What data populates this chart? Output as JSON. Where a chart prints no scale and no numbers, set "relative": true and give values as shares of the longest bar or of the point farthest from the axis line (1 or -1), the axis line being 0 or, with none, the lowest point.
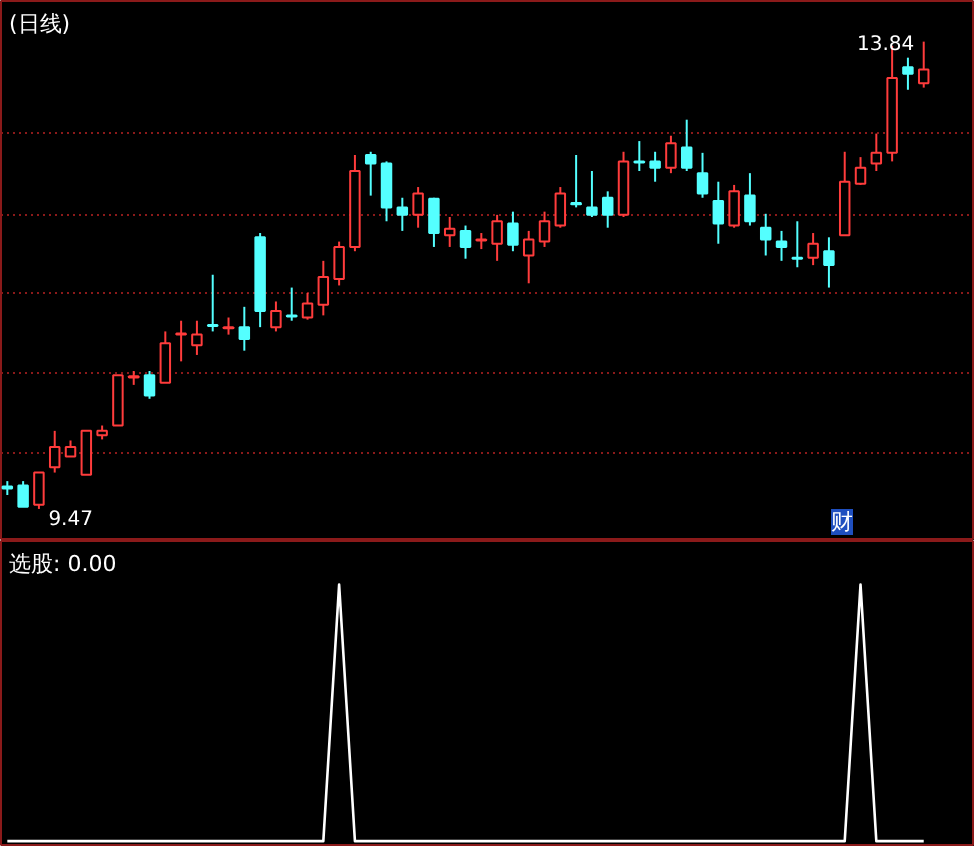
{
  "chart_data": [
    {
      "type": "candlestick",
      "title": "(日线)",
      "tick_labels": false,
      "grid": "y",
      "ylim": [
        9.17,
        14.22
      ],
      "yticks": [
        {
          "value": 12.98,
          "label": null
        },
        {
          "value": 12.22,
          "label": null
        },
        {
          "value": 11.49,
          "label": null
        },
        {
          "value": 10.74,
          "label": null
        },
        {
          "value": 9.99,
          "label": null
        }
      ],
      "categories": [
        null,
        null,
        null,
        null,
        null,
        null,
        null,
        null,
        null,
        null,
        null,
        null,
        null,
        null,
        null,
        null,
        null,
        null,
        null,
        null,
        null,
        null,
        null,
        null,
        null,
        null,
        null,
        null,
        null,
        null,
        null,
        null,
        null,
        null,
        null,
        null,
        null,
        null,
        null,
        null,
        null,
        null,
        null,
        null,
        null,
        null,
        null,
        null,
        null,
        null,
        null,
        null,
        null,
        null,
        null,
        null,
        null,
        null,
        null
      ],
      "ohlc": [
        [
          9.68,
          9.73,
          9.6,
          9.66
        ],
        [
          9.69,
          9.73,
          9.49,
          9.49
        ],
        [
          9.51,
          9.81,
          9.47,
          9.81
        ],
        [
          9.86,
          10.2,
          9.81,
          10.05
        ],
        [
          9.96,
          10.11,
          9.96,
          10.05
        ],
        [
          9.79,
          10.2,
          9.79,
          10.2
        ],
        [
          10.16,
          10.25,
          10.12,
          10.2
        ],
        [
          10.25,
          10.72,
          10.25,
          10.72
        ],
        [
          10.7,
          10.76,
          10.63,
          10.71
        ],
        [
          10.72,
          10.76,
          10.5,
          10.53
        ],
        [
          10.65,
          11.13,
          10.65,
          11.02
        ],
        [
          11.1,
          11.23,
          10.85,
          11.11
        ],
        [
          11.0,
          11.23,
          10.91,
          11.1
        ],
        [
          11.19,
          11.66,
          11.13,
          11.18
        ],
        [
          11.16,
          11.26,
          11.1,
          11.17
        ],
        [
          11.17,
          11.36,
          10.95,
          11.06
        ],
        [
          12.01,
          12.05,
          11.17,
          11.32
        ],
        [
          11.17,
          11.41,
          11.13,
          11.32
        ],
        [
          11.28,
          11.54,
          11.23,
          11.27
        ],
        [
          11.26,
          11.49,
          11.24,
          11.39
        ],
        [
          11.38,
          11.79,
          11.28,
          11.64
        ],
        [
          11.62,
          11.97,
          11.56,
          11.92
        ],
        [
          11.92,
          12.78,
          11.88,
          12.63
        ],
        [
          12.78,
          12.81,
          12.4,
          12.7
        ],
        [
          12.7,
          12.72,
          12.16,
          12.29
        ],
        [
          12.29,
          12.38,
          12.07,
          12.22
        ],
        [
          12.22,
          12.48,
          12.1,
          12.42
        ],
        [
          12.37,
          12.38,
          11.92,
          12.05
        ],
        [
          12.03,
          12.2,
          11.92,
          12.09
        ],
        [
          12.07,
          12.12,
          11.81,
          11.92
        ],
        [
          11.98,
          12.05,
          11.9,
          11.99
        ],
        [
          11.95,
          12.22,
          11.79,
          12.16
        ],
        [
          12.14,
          12.25,
          11.88,
          11.94
        ],
        [
          11.84,
          12.07,
          11.58,
          11.99
        ],
        [
          11.97,
          12.25,
          11.92,
          12.16
        ],
        [
          12.12,
          12.48,
          12.1,
          12.42
        ],
        [
          12.33,
          12.78,
          12.29,
          12.32
        ],
        [
          12.29,
          12.63,
          12.2,
          12.22
        ],
        [
          12.38,
          12.44,
          12.1,
          12.22
        ],
        [
          12.22,
          12.81,
          12.2,
          12.72
        ],
        [
          12.72,
          12.91,
          12.63,
          12.71
        ],
        [
          12.72,
          12.81,
          12.53,
          12.66
        ],
        [
          12.66,
          12.96,
          12.61,
          12.89
        ],
        [
          12.85,
          13.11,
          12.63,
          12.66
        ],
        [
          12.61,
          12.8,
          12.38,
          12.42
        ],
        [
          12.35,
          12.53,
          11.95,
          12.14
        ],
        [
          12.12,
          12.5,
          12.1,
          12.44
        ],
        [
          12.4,
          12.61,
          12.12,
          12.16
        ],
        [
          12.1,
          12.23,
          11.84,
          11.99
        ],
        [
          11.97,
          12.07,
          11.79,
          11.92
        ],
        [
          11.82,
          12.16,
          11.73,
          11.81
        ],
        [
          11.82,
          12.05,
          11.75,
          11.95
        ],
        [
          11.88,
          12.01,
          11.54,
          11.75
        ],
        [
          12.03,
          12.81,
          12.03,
          12.53
        ],
        [
          12.51,
          12.76,
          12.5,
          12.66
        ],
        [
          12.7,
          12.98,
          12.63,
          12.8
        ],
        [
          12.8,
          13.8,
          12.72,
          13.5
        ],
        [
          13.6,
          13.69,
          13.39,
          13.54
        ],
        [
          13.45,
          13.84,
          13.41,
          13.58
        ]
      ],
      "colors": [
        "#54ffff",
        "#54ffff",
        "#ff3c3c",
        "#ff3c3c",
        "#ff3c3c",
        "#ff3c3c",
        "#ff3c3c",
        "#ff3c3c",
        "#ff3c3c",
        "#54ffff",
        "#ff3c3c",
        "#ff3c3c",
        "#ff3c3c",
        "#54ffff",
        "#ff3c3c",
        "#54ffff",
        "#54ffff",
        "#ff3c3c",
        "#54ffff",
        "#ff3c3c",
        "#ff3c3c",
        "#ff3c3c",
        "#ff3c3c",
        "#54ffff",
        "#54ffff",
        "#54ffff",
        "#ff3c3c",
        "#54ffff",
        "#ff3c3c",
        "#54ffff",
        "#ff3c3c",
        "#ff3c3c",
        "#54ffff",
        "#ff3c3c",
        "#ff3c3c",
        "#ff3c3c",
        "#54ffff",
        "#54ffff",
        "#54ffff",
        "#ff3c3c",
        "#54ffff",
        "#54ffff",
        "#ff3c3c",
        "#54ffff",
        "#54ffff",
        "#54ffff",
        "#ff3c3c",
        "#54ffff",
        "#54ffff",
        "#54ffff",
        "#54ffff",
        "#ff3c3c",
        "#54ffff",
        "#ff3c3c",
        "#ff3c3c",
        "#ff3c3c",
        "#ff3c3c",
        "#54ffff",
        "#ff3c3c"
      ],
      "annotations": [
        "13.84",
        "9.47",
        "财"
      ]
    },
    {
      "type": "line",
      "title": "选股: 0.00",
      "relative": true,
      "tick_labels": false,
      "categories": [
        null,
        null,
        null,
        null,
        null,
        null,
        null,
        null,
        null,
        null,
        null,
        null,
        null,
        null,
        null,
        null,
        null,
        null,
        null,
        null,
        null,
        null,
        null,
        null,
        null,
        null,
        null,
        null,
        null,
        null,
        null,
        null,
        null,
        null,
        null,
        null,
        null,
        null,
        null,
        null,
        null,
        null,
        null,
        null,
        null,
        null,
        null,
        null,
        null,
        null,
        null,
        null,
        null,
        null,
        null,
        null,
        null,
        null,
        null
      ],
      "series": [
        {
          "color": "#ffffff",
          "values": [
            0,
            0,
            0,
            0,
            0,
            0,
            0,
            0,
            0,
            0,
            0,
            0,
            0,
            0,
            0,
            0,
            0,
            0,
            0,
            0,
            0,
            1,
            0,
            0,
            0,
            0,
            0,
            0,
            0,
            0,
            0,
            0,
            0,
            0,
            0,
            0,
            0,
            0,
            0,
            0,
            0,
            0,
            0,
            0,
            0,
            0,
            0,
            0,
            0,
            0,
            0,
            0,
            0,
            0,
            1,
            0,
            0,
            0,
            0
          ]
        }
      ]
    }
  ]
}
